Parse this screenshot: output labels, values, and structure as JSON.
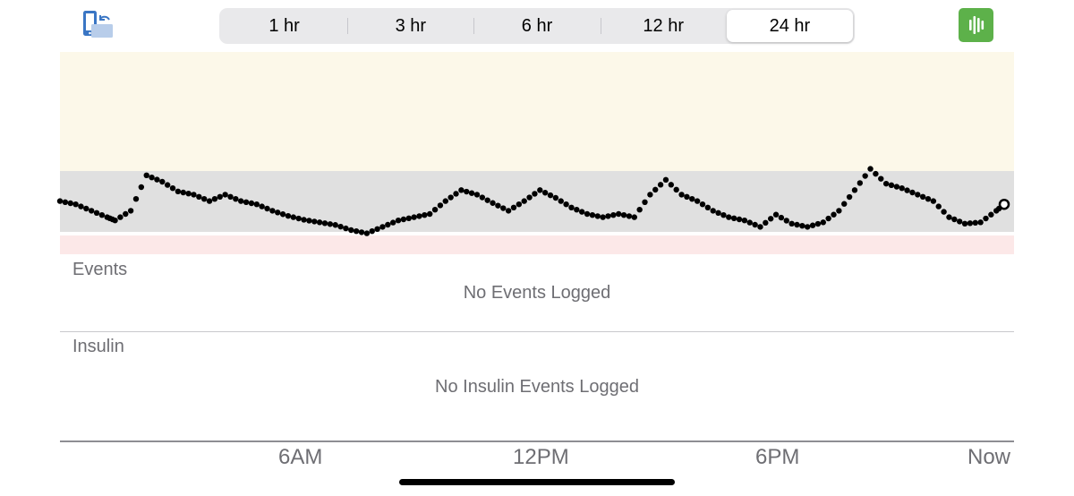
{
  "toolbar": {
    "range_options": [
      "1 hr",
      "3 hr",
      "6 hr",
      "12 hr",
      "24 hr"
    ],
    "selected_range": "24 hr",
    "rotate_icon": "rotate-phone-icon",
    "stats_icon": "stats-bars-icon"
  },
  "colors": {
    "high_zone": "#fcf8e9",
    "target_zone": "#e0e0e0",
    "low_zone": "#fce8e8",
    "glucose_dot": "#000000",
    "stats_button": "#5db14a"
  },
  "events": {
    "label": "Events",
    "empty_message": "No Events Logged"
  },
  "insulin": {
    "label": "Insulin",
    "empty_message": "No Insulin Events Logged"
  },
  "time_axis": {
    "ticks": [
      "6AM",
      "12PM",
      "6PM",
      "Now"
    ]
  },
  "chart_data": {
    "type": "scatter",
    "x_unit": "hours before now",
    "x": [
      -24,
      -23.6,
      -23.2,
      -22.8,
      -22.6,
      -22.2,
      -21.8,
      -21.4,
      -21,
      -20.6,
      -20.2,
      -19.8,
      -19.4,
      -19,
      -18.6,
      -18.2,
      -17.8,
      -17.4,
      -17,
      -16.6,
      -16.2,
      -15.8,
      -15.4,
      -15,
      -14.6,
      -14.2,
      -13.8,
      -13.4,
      -13,
      -12.6,
      -12.2,
      -11.8,
      -11.4,
      -11,
      -10.6,
      -10.2,
      -9.8,
      -9.4,
      -9,
      -8.6,
      -8.2,
      -7.8,
      -7.4,
      -7,
      -6.6,
      -6.2,
      -5.8,
      -5.4,
      -5,
      -4.6,
      -4.2,
      -3.8,
      -3.4,
      -3,
      -2.6,
      -2.2,
      -1.8,
      -1.4,
      -1,
      -0.6,
      -0.2,
      0
    ],
    "bands": [
      {
        "name": "high",
        "color": "#fcf8e9"
      },
      {
        "name": "target",
        "color": "#e0e0e0"
      },
      {
        "name": "low",
        "color": "#fce8e8"
      }
    ],
    "grid": false,
    "legend": "none",
    "xlabel": "",
    "ylabel": ""
  }
}
